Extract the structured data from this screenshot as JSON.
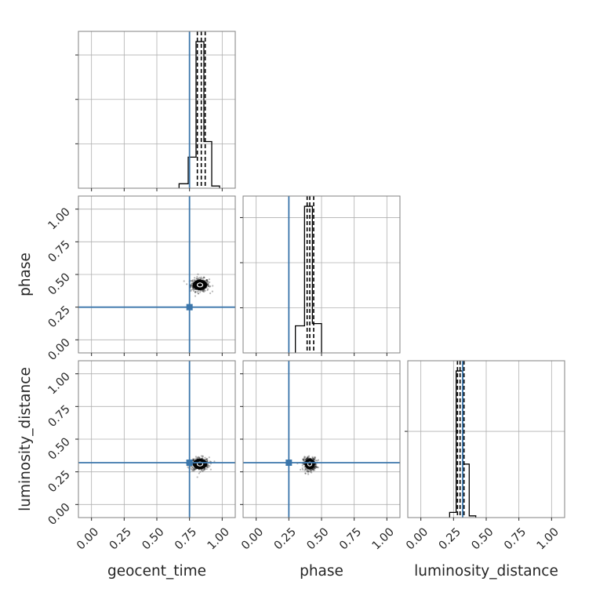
{
  "chart_data": {
    "type": "corner",
    "parameters": [
      "geocent_time",
      "phase",
      "luminosity_distance"
    ],
    "axis_range": [
      -0.1,
      1.1
    ],
    "tick_labels": [
      "0.00",
      "0.25",
      "0.50",
      "0.75",
      "1.00"
    ],
    "tick_values": [
      0,
      0.25,
      0.5,
      0.75,
      1.0
    ],
    "grid": true,
    "colors": {
      "truth": "#3b76ab",
      "hist": "#000000",
      "grid": "#b0b0b0",
      "frame": "#808080"
    },
    "truths": {
      "geocent_time": 0.75,
      "phase": 0.25,
      "luminosity_distance": 0.32
    },
    "marginals": [
      {
        "parameter": "geocent_time",
        "bin_edges": [
          0.67,
          0.74,
          0.8,
          0.86,
          0.92,
          0.98
        ],
        "counts": [
          0.1,
          0.7,
          3.3,
          1.05,
          0.05
        ],
        "quantiles": [
          0.81,
          0.84,
          0.87
        ]
      },
      {
        "parameter": "phase",
        "bin_edges": [
          0.3,
          0.37,
          0.43,
          0.5
        ],
        "counts": [
          0.6,
          3.25,
          0.65
        ],
        "quantiles": [
          0.39,
          0.41,
          0.44
        ]
      },
      {
        "parameter": "luminosity_distance",
        "bin_edges": [
          0.22,
          0.27,
          0.32,
          0.37,
          0.42
        ],
        "counts": [
          0.06,
          1.7,
          0.62,
          0.02
        ],
        "quantiles": [
          0.28,
          0.3,
          0.33
        ]
      }
    ],
    "joint": [
      {
        "x": "geocent_time",
        "y": "phase",
        "center": [
          0.83,
          0.42
        ],
        "spread": [
          0.035,
          0.025
        ]
      },
      {
        "x": "geocent_time",
        "y": "luminosity_distance",
        "center": [
          0.83,
          0.31
        ],
        "spread": [
          0.035,
          0.025
        ]
      },
      {
        "x": "phase",
        "y": "luminosity_distance",
        "center": [
          0.41,
          0.31
        ],
        "spread": [
          0.025,
          0.025
        ]
      }
    ]
  }
}
